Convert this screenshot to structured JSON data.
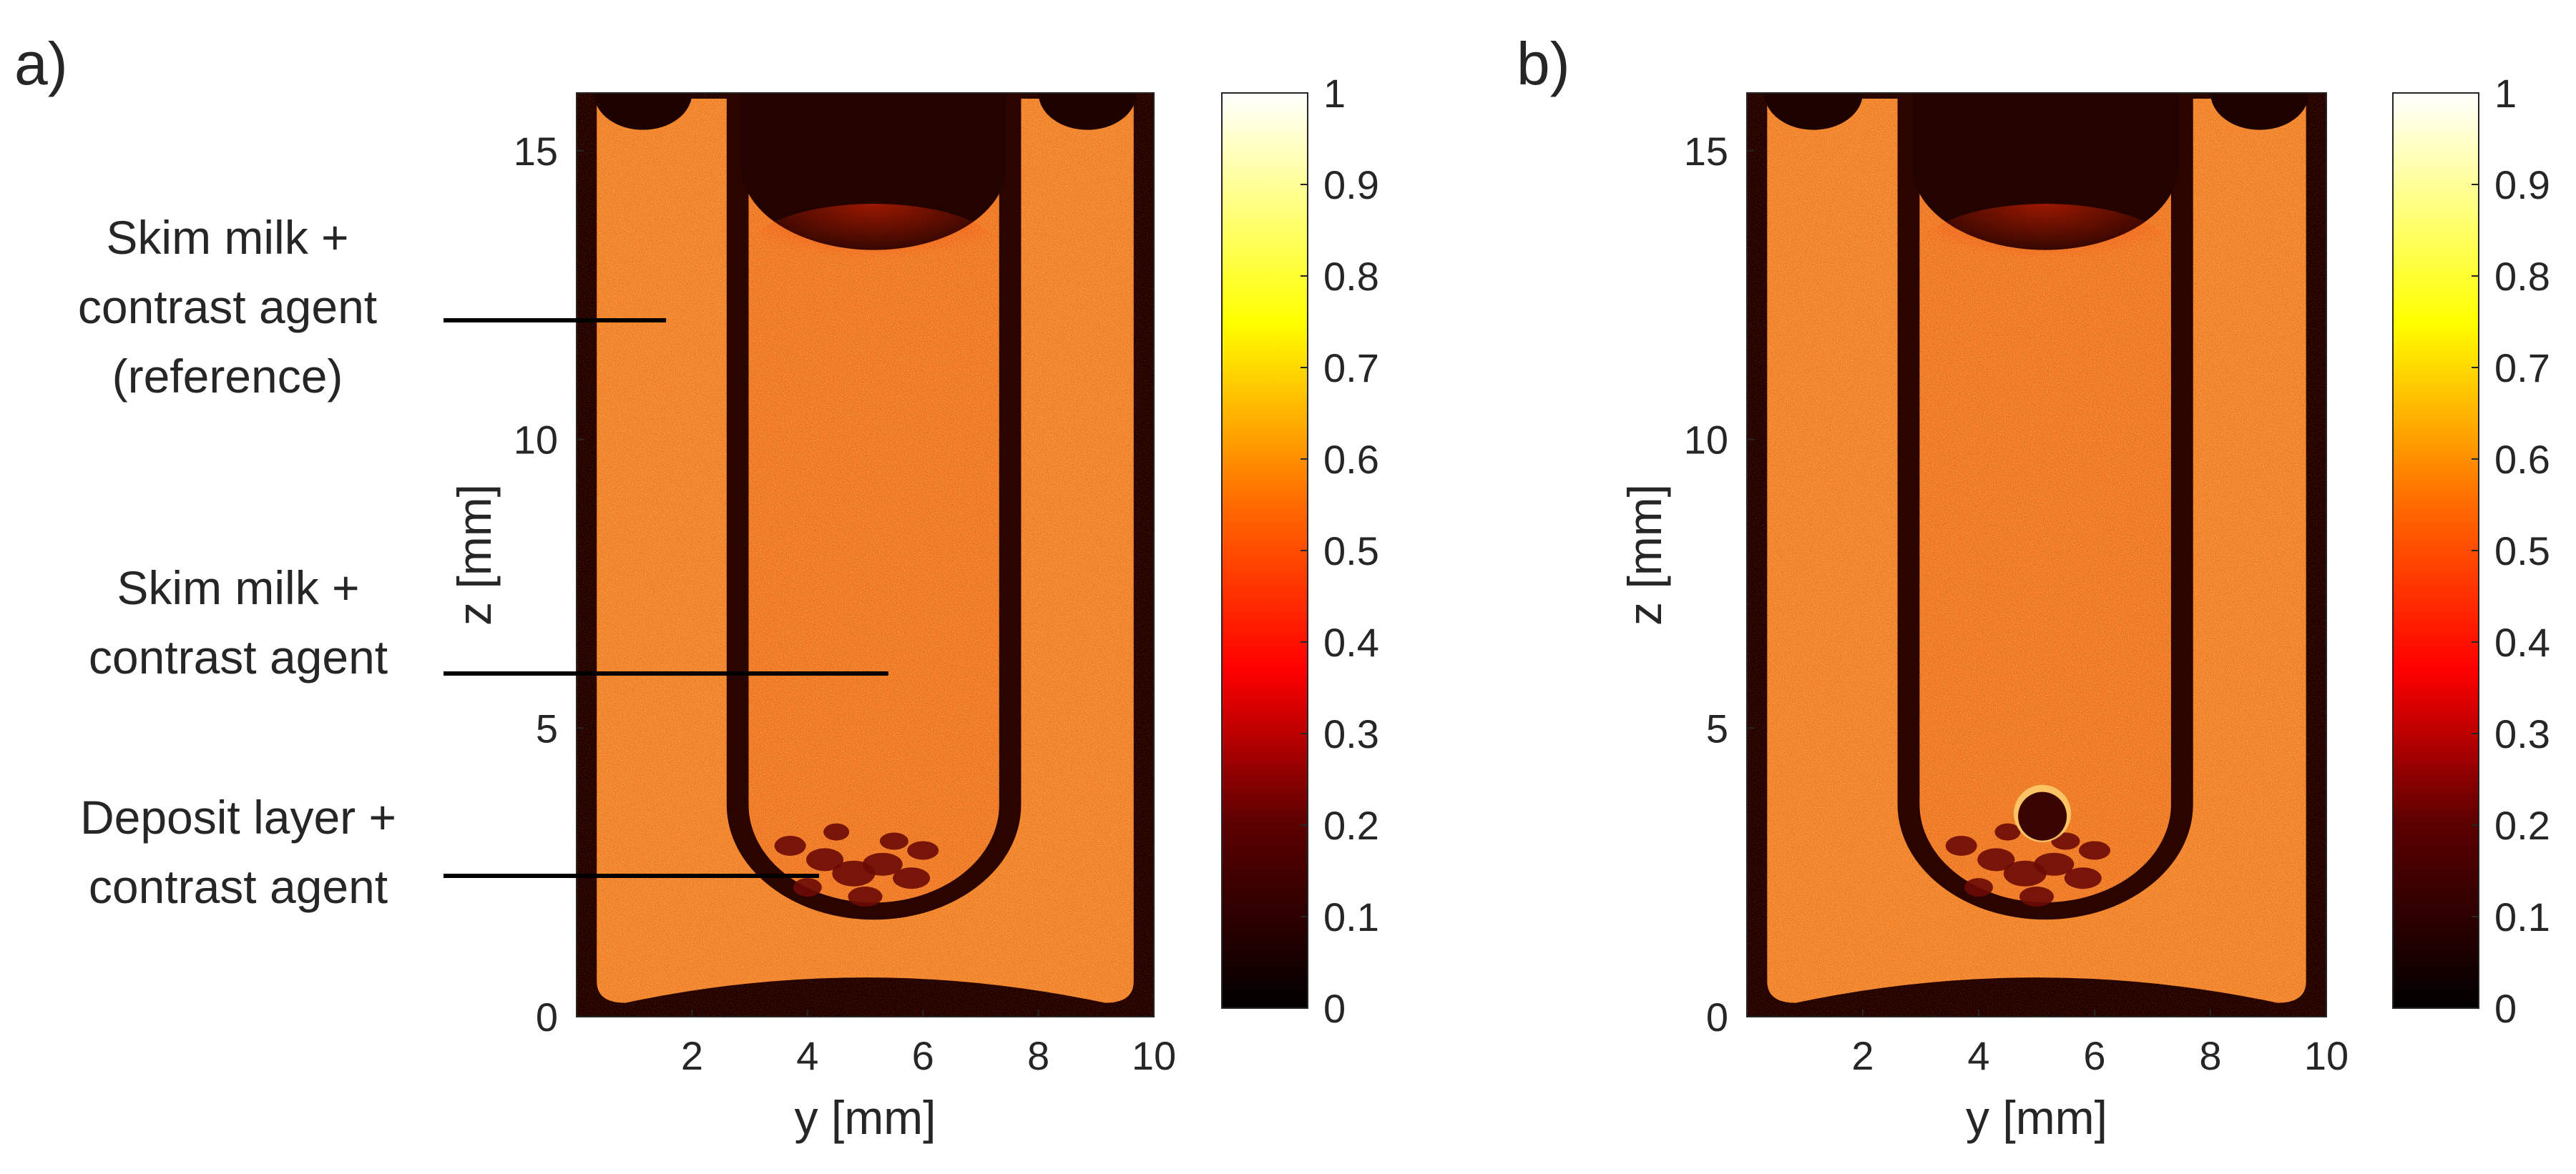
{
  "panels": [
    {
      "label": "a)",
      "xlabel": "y [mm]",
      "ylabel": "z [mm]",
      "xticks": [
        "2",
        "4",
        "6",
        "8",
        "10"
      ],
      "yticks": [
        "0",
        "5",
        "10",
        "15"
      ],
      "xlim": [
        0,
        10
      ],
      "ylim": [
        0,
        16
      ],
      "colorbar_ticks": [
        "0",
        "0.1",
        "0.2",
        "0.3",
        "0.4",
        "0.5",
        "0.6",
        "0.7",
        "0.8",
        "0.9",
        "1"
      ],
      "colormap": "hot",
      "annotations": [
        {
          "lines": [
            "Skim milk +",
            "contrast agent",
            "(reference)"
          ]
        },
        {
          "lines": [
            "Skim milk +",
            "contrast agent"
          ]
        },
        {
          "lines": [
            "Deposit layer +",
            "contrast agent"
          ]
        }
      ]
    },
    {
      "label": "b)",
      "xlabel": "y [mm]",
      "ylabel": "z [mm]",
      "xticks": [
        "2",
        "4",
        "6",
        "8",
        "10"
      ],
      "yticks": [
        "0",
        "5",
        "10",
        "15"
      ],
      "xlim": [
        0,
        10
      ],
      "ylim": [
        0,
        16
      ],
      "colorbar_ticks": [
        "0",
        "0.1",
        "0.2",
        "0.3",
        "0.4",
        "0.5",
        "0.6",
        "0.7",
        "0.8",
        "0.9",
        "1"
      ],
      "colormap": "hot",
      "annotations": []
    }
  ],
  "colors": {
    "background": "#1a0000",
    "milk": "#f07a22",
    "milk_inner": "#ee6f1c",
    "tube_wall": "#2a0500",
    "deposit": "#6a0a05",
    "highlight": "#ffe080"
  }
}
